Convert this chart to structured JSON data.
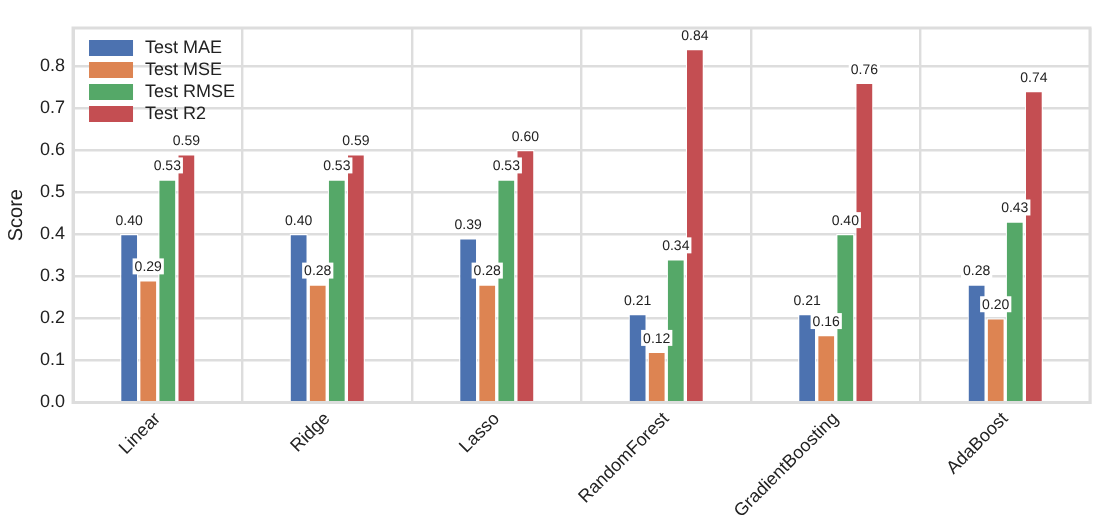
{
  "chart_data": {
    "type": "bar",
    "ylabel": "Score",
    "categories": [
      "Linear",
      "Ridge",
      "Lasso",
      "RandomForest",
      "GradientBoosting",
      "AdaBoost"
    ],
    "series": [
      {
        "name": "Test MAE",
        "color": "#4c72b0",
        "values": [
          0.4,
          0.4,
          0.39,
          0.21,
          0.21,
          0.28
        ],
        "value_labels": [
          "0.40",
          "0.40",
          "0.39",
          "0.21",
          "0.21",
          "0.28"
        ]
      },
      {
        "name": "Test MSE",
        "color": "#dd8452",
        "values": [
          0.29,
          0.28,
          0.28,
          0.12,
          0.16,
          0.2
        ],
        "value_labels": [
          "0.29",
          "0.28",
          "0.28",
          "0.12",
          "0.16",
          "0.20"
        ]
      },
      {
        "name": "Test RMSE",
        "color": "#55a868",
        "values": [
          0.53,
          0.53,
          0.53,
          0.34,
          0.4,
          0.43
        ],
        "value_labels": [
          "0.53",
          "0.53",
          "0.53",
          "0.34",
          "0.40",
          "0.43"
        ]
      },
      {
        "name": "Test R2",
        "color": "#c44e52",
        "values": [
          0.59,
          0.59,
          0.6,
          0.84,
          0.76,
          0.74
        ],
        "value_labels": [
          "0.59",
          "0.59",
          "0.60",
          "0.84",
          "0.76",
          "0.74"
        ]
      }
    ],
    "ylim": [
      0,
      0.89
    ],
    "yticks": [
      {
        "value": 0,
        "label": "0.0"
      },
      {
        "value": 0.1,
        "label": "0.1"
      },
      {
        "value": 0.2,
        "label": "0.2"
      },
      {
        "value": 0.3,
        "label": "0.3"
      },
      {
        "value": 0.4,
        "label": "0.4"
      },
      {
        "value": 0.5,
        "label": "0.5"
      },
      {
        "value": 0.6,
        "label": "0.6"
      },
      {
        "value": 0.7,
        "label": "0.7"
      },
      {
        "value": 0.8,
        "label": "0.8"
      }
    ],
    "grid": true,
    "legend": "top left"
  }
}
